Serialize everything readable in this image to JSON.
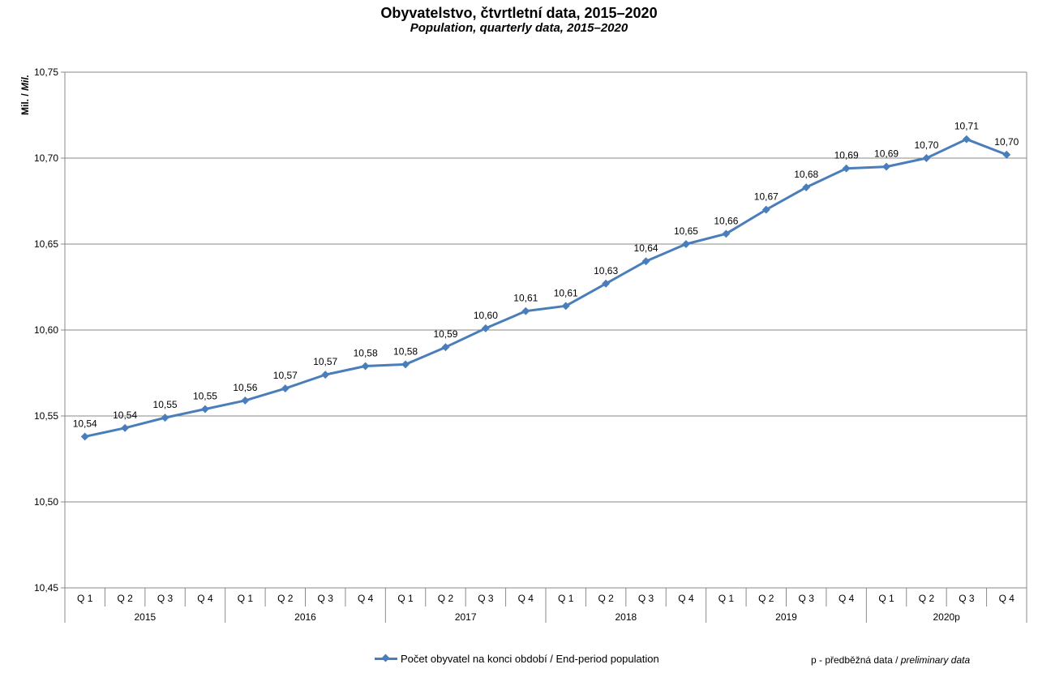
{
  "chart_data": {
    "type": "line",
    "title": "Obyvatelstvo, čtvrtletní data, 2015–2020",
    "subtitle": "Population, quarterly data, 2015–2020",
    "ylabel": "Mil. / Mil.",
    "ylabel_plain": "Mil. / ",
    "ylabel_italic": "Mil.",
    "ylim": [
      10.45,
      10.75
    ],
    "yticks": [
      10.45,
      10.5,
      10.55,
      10.6,
      10.65,
      10.7,
      10.75
    ],
    "ytick_labels": [
      "10,45",
      "10,50",
      "10,55",
      "10,60",
      "10,65",
      "10,70",
      "10,75"
    ],
    "grid": true,
    "legend_position": "bottom",
    "categories": [
      "Q 1",
      "Q 2",
      "Q 3",
      "Q 4",
      "Q 1",
      "Q 2",
      "Q 3",
      "Q 4",
      "Q 1",
      "Q 2",
      "Q 3",
      "Q 4",
      "Q 1",
      "Q 2",
      "Q 3",
      "Q 4",
      "Q 1",
      "Q 2",
      "Q 3",
      "Q 4",
      "Q 1",
      "Q 2",
      "Q 3",
      "Q 4"
    ],
    "year_groups": [
      "2015",
      "2016",
      "2017",
      "2018",
      "2019",
      "2020p"
    ],
    "series": [
      {
        "name": "Počet obyvatel na konci období / End-period population",
        "color": "#4a7ebb",
        "values": [
          10.538,
          10.543,
          10.549,
          10.554,
          10.559,
          10.566,
          10.574,
          10.579,
          10.58,
          10.59,
          10.601,
          10.611,
          10.614,
          10.627,
          10.64,
          10.65,
          10.656,
          10.67,
          10.683,
          10.694,
          10.695,
          10.7,
          10.711,
          10.702
        ],
        "labels": [
          "10,54",
          "10,54",
          "10,55",
          "10,55",
          "10,56",
          "10,57",
          "10,57",
          "10,58",
          "10,58",
          "10,59",
          "10,60",
          "10,61",
          "10,61",
          "10,63",
          "10,64",
          "10,65",
          "10,66",
          "10,67",
          "10,68",
          "10,69",
          "10,69",
          "10,70",
          "10,71",
          "10,70"
        ]
      }
    ]
  },
  "legend": {
    "series_label": "Počet obyvatel na konci období / End-period population"
  },
  "note": {
    "prefix": "p - předběžná data / ",
    "italic": "preliminary data"
  }
}
